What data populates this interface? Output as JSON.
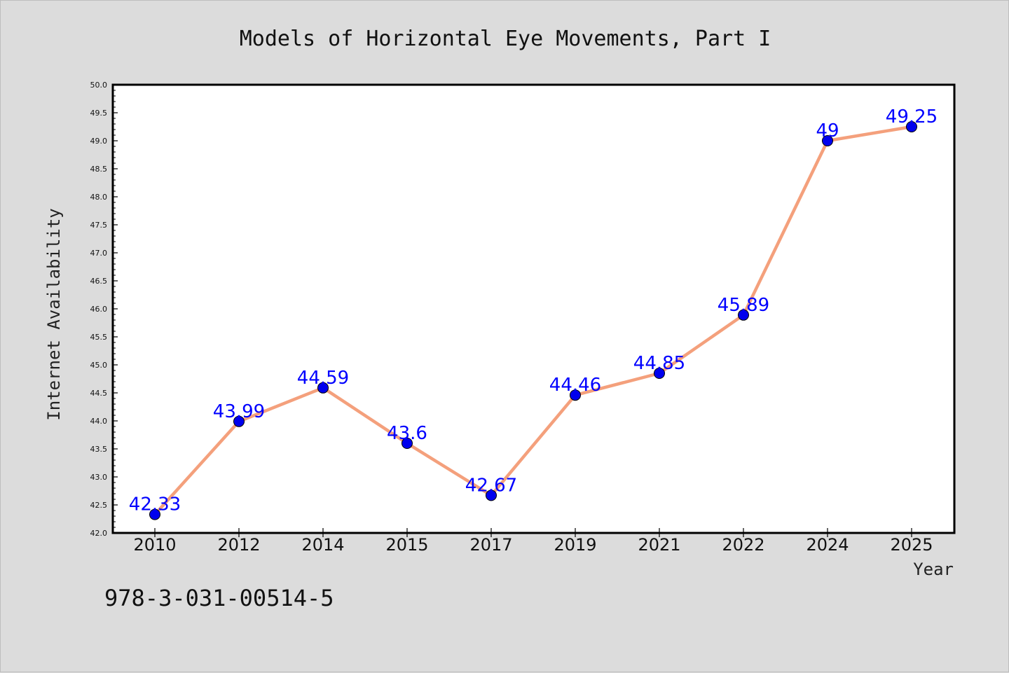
{
  "chart_data": {
    "type": "line",
    "title": "Models of Horizontal Eye Movements, Part I",
    "xlabel": "Year",
    "ylabel": "Internet Availability",
    "categories": [
      "2010",
      "2012",
      "2014",
      "2015",
      "2017",
      "2019",
      "2021",
      "2022",
      "2024",
      "2025"
    ],
    "series": [
      {
        "values": [
          42.33,
          43.99,
          44.59,
          43.6,
          42.67,
          44.46,
          44.85,
          45.89,
          49,
          49.25
        ],
        "data_labels": [
          "42.33",
          "43.99",
          "44.59",
          "43.6",
          "42.67",
          "44.46",
          "44.85",
          "45.89",
          "49",
          "49.25"
        ]
      }
    ],
    "ylim": [
      42.0,
      50.0
    ],
    "yticks": [
      "42.0",
      "42.5",
      "43.0",
      "43.5",
      "44.0",
      "44.5",
      "45.0",
      "45.5",
      "46.0",
      "46.5",
      "47.0",
      "47.5",
      "48.0",
      "48.5",
      "49.0",
      "49.5",
      "50.0"
    ],
    "grid": false,
    "line_color": "#f4a07c",
    "marker_color": "#0000ee",
    "label_color": "#0000ff"
  },
  "footer": {
    "isbn": "978-3-031-00514-5"
  }
}
